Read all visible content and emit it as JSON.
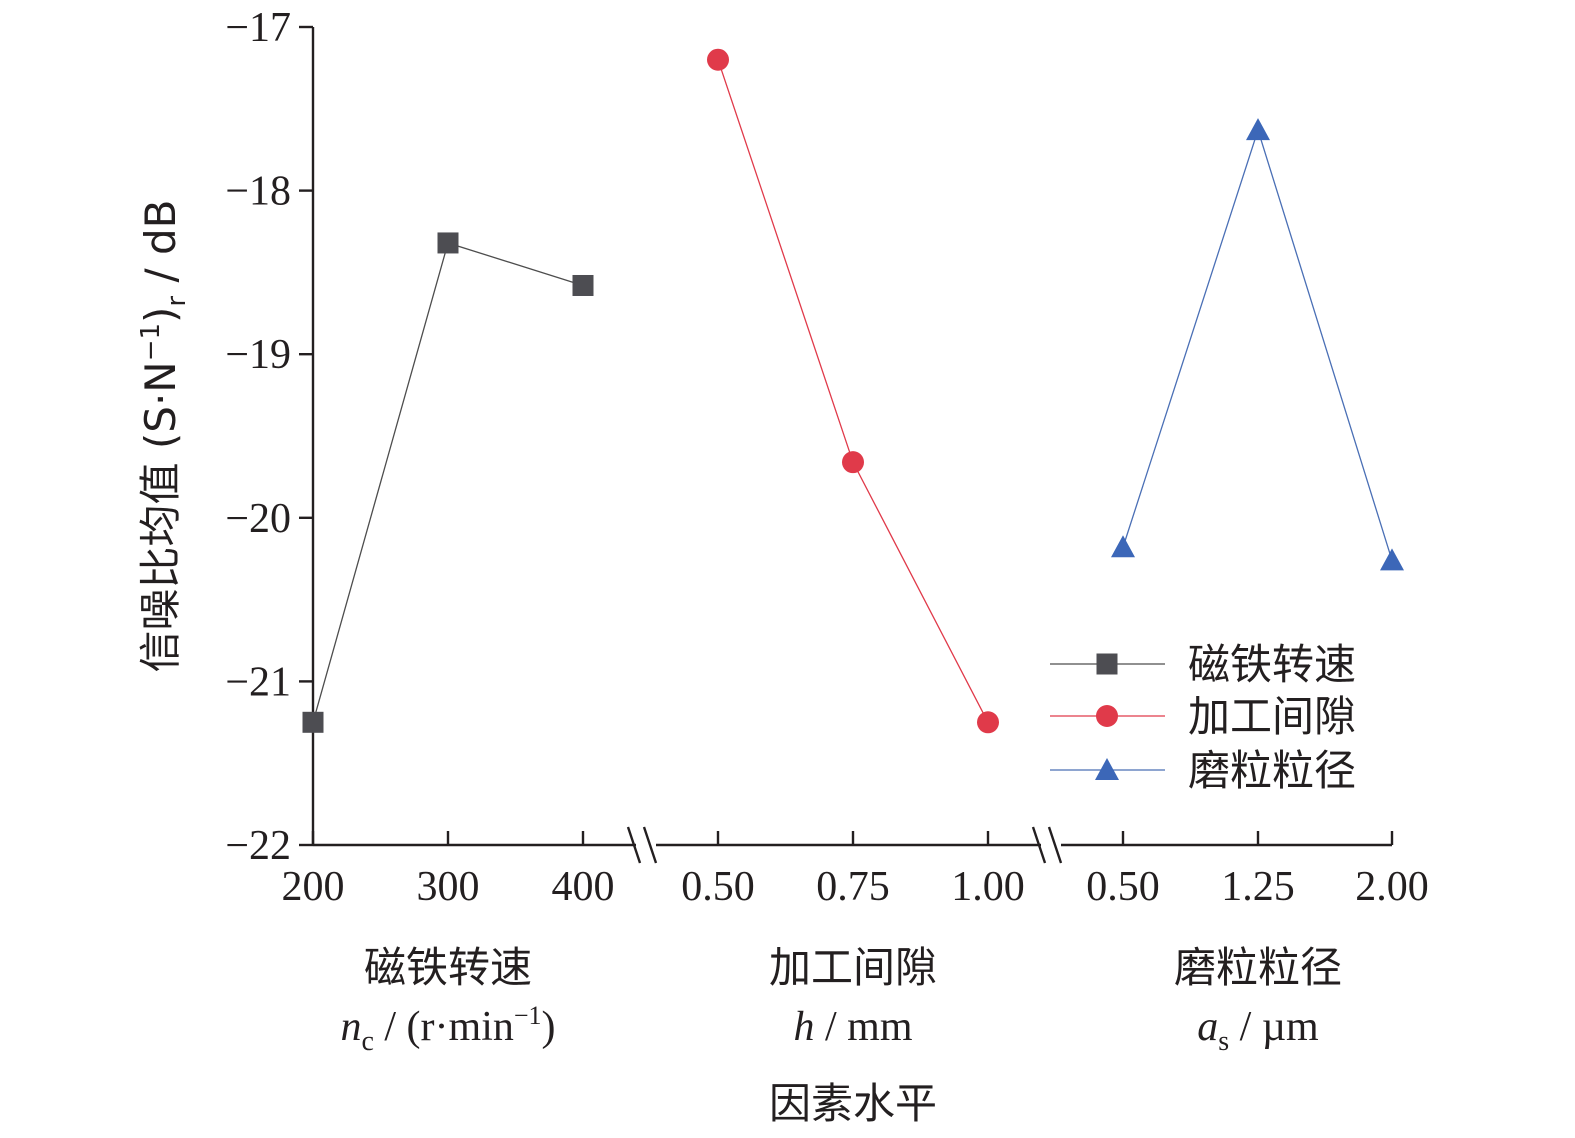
{
  "chart_data": {
    "type": "line",
    "ylabel": {
      "main": "信噪比均值 (S·N",
      "sup": "−1",
      "close": ")",
      "sub": "r",
      "unit": " / dB"
    },
    "ylim": [
      -22,
      -17
    ],
    "yticks": [
      "−17",
      "−18",
      "−19",
      "−20",
      "−21",
      "−22"
    ],
    "yticks_values": [
      -17,
      -18,
      -19,
      -20,
      -21,
      -22
    ],
    "xlabel": "因素水平",
    "axis_break": true,
    "groups": [
      {
        "name": "磁铁转速",
        "unit": {
          "var": "n",
          "sub": "c",
          "rest": " / (r·min",
          "sup": "−1",
          "close": ")"
        },
        "categories": [
          "200",
          "300",
          "400"
        ],
        "values": [
          -21.25,
          -18.32,
          -18.58
        ],
        "color": "#4d4d52",
        "line_color": "#4d4d4d",
        "marker": "square"
      },
      {
        "name": "加工间隙",
        "unit": {
          "var": "h",
          "sub": "",
          "rest": " / mm",
          "sup": "",
          "close": ""
        },
        "categories": [
          "0.50",
          "0.75",
          "1.00"
        ],
        "values": [
          -17.2,
          -19.66,
          -21.25
        ],
        "color": "#e03a4a",
        "line_color": "#e03a4a",
        "marker": "circle"
      },
      {
        "name": "磨粒粒径",
        "unit": {
          "var": "a",
          "sub": "s",
          "rest": " / µm",
          "sup": "",
          "close": ""
        },
        "categories": [
          "0.50",
          "1.25",
          "2.00"
        ],
        "values": [
          -20.18,
          -17.63,
          -20.26
        ],
        "color": "#3c67b8",
        "line_color": "#4a6fb5",
        "marker": "triangle"
      }
    ],
    "legend": {
      "position": "lower-right",
      "entries": [
        "磁铁转速",
        "加工间隙",
        "磨粒粒径"
      ]
    }
  }
}
